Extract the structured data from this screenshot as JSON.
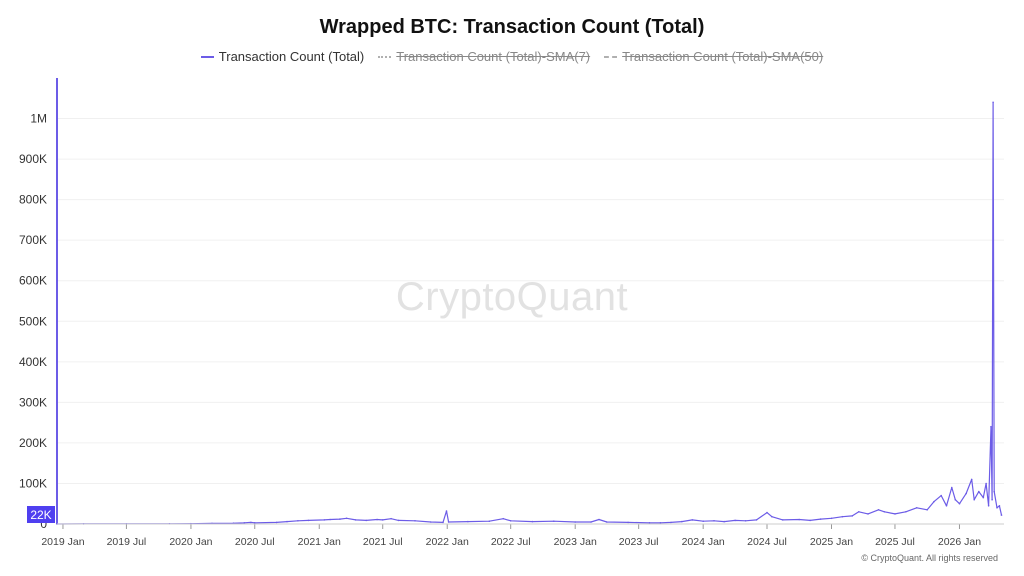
{
  "title": "Wrapped BTC: Transaction Count (Total)",
  "legend": [
    {
      "label": "Transaction Count (Total)",
      "color": "#6c5ce7",
      "hidden": false,
      "style": "solid"
    },
    {
      "label": "Transaction Count (Total)-SMA(7)",
      "color": "#b0b0b0",
      "hidden": true,
      "style": "dotted"
    },
    {
      "label": "Transaction Count (Total)-SMA(50)",
      "color": "#b0b0b0",
      "hidden": true,
      "style": "dashed"
    }
  ],
  "watermark": "CryptoQuant",
  "credit": "© CryptoQuant. All rights reserved",
  "current_value_label": "22K",
  "colors": {
    "series": "#6c5ce7",
    "label_bg": "#4f3ff0",
    "grid": "#f0f0f0"
  },
  "chart_data": {
    "type": "line",
    "title": "Wrapped BTC: Transaction Count (Total)",
    "xlabel": "",
    "ylabel": "",
    "ylim": [
      0,
      1100000
    ],
    "xlim": [
      "2018-12-15",
      "2026-05-08"
    ],
    "grid": true,
    "legend_position": "top-center",
    "y_ticks": [
      {
        "value": 0,
        "label": "0"
      },
      {
        "value": 100000,
        "label": "100K"
      },
      {
        "value": 200000,
        "label": "200K"
      },
      {
        "value": 300000,
        "label": "300K"
      },
      {
        "value": 400000,
        "label": "400K"
      },
      {
        "value": 500000,
        "label": "500K"
      },
      {
        "value": 600000,
        "label": "600K"
      },
      {
        "value": 700000,
        "label": "700K"
      },
      {
        "value": 800000,
        "label": "800K"
      },
      {
        "value": 900000,
        "label": "900K"
      },
      {
        "value": 1000000,
        "label": "1M"
      }
    ],
    "x_ticks": [
      {
        "date": "2019-01-01",
        "label": "2019 Jan"
      },
      {
        "date": "2019-07-01",
        "label": "2019 Jul"
      },
      {
        "date": "2020-01-01",
        "label": "2020 Jan"
      },
      {
        "date": "2020-07-01",
        "label": "2020 Jul"
      },
      {
        "date": "2021-01-01",
        "label": "2021 Jan"
      },
      {
        "date": "2021-07-01",
        "label": "2021 Jul"
      },
      {
        "date": "2022-01-01",
        "label": "2022 Jan"
      },
      {
        "date": "2022-07-01",
        "label": "2022 Jul"
      },
      {
        "date": "2023-01-01",
        "label": "2023 Jan"
      },
      {
        "date": "2023-07-01",
        "label": "2023 Jul"
      },
      {
        "date": "2024-01-01",
        "label": "2024 Jan"
      },
      {
        "date": "2024-07-01",
        "label": "2024 Jul"
      },
      {
        "date": "2025-01-01",
        "label": "2025 Jan"
      },
      {
        "date": "2025-07-01",
        "label": "2025 Jul"
      },
      {
        "date": "2026-01-01",
        "label": "2026 Jan"
      }
    ],
    "series": [
      {
        "name": "Transaction Count (Total)",
        "points": [
          [
            "2018-12-15",
            0
          ],
          [
            "2019-03-01",
            200
          ],
          [
            "2019-07-01",
            300
          ],
          [
            "2019-11-01",
            500
          ],
          [
            "2020-01-01",
            800
          ],
          [
            "2020-03-01",
            1500
          ],
          [
            "2020-05-01",
            2000
          ],
          [
            "2020-06-01",
            3000
          ],
          [
            "2020-06-20",
            4000
          ],
          [
            "2020-07-01",
            3000
          ],
          [
            "2020-09-01",
            4000
          ],
          [
            "2020-10-01",
            6000
          ],
          [
            "2020-11-01",
            8000
          ],
          [
            "2020-12-01",
            9000
          ],
          [
            "2021-01-15",
            10000
          ],
          [
            "2021-02-01",
            11000
          ],
          [
            "2021-03-01",
            12000
          ],
          [
            "2021-03-20",
            14000
          ],
          [
            "2021-04-15",
            10000
          ],
          [
            "2021-05-15",
            9000
          ],
          [
            "2021-06-15",
            11000
          ],
          [
            "2021-07-01",
            10000
          ],
          [
            "2021-07-25",
            13000
          ],
          [
            "2021-08-15",
            9000
          ],
          [
            "2021-10-01",
            8000
          ],
          [
            "2021-11-15",
            5000
          ],
          [
            "2021-12-20",
            4000
          ],
          [
            "2021-12-30",
            32000
          ],
          [
            "2022-01-05",
            5000
          ],
          [
            "2022-03-01",
            6000
          ],
          [
            "2022-05-01",
            7000
          ],
          [
            "2022-06-10",
            13000
          ],
          [
            "2022-07-01",
            8000
          ],
          [
            "2022-09-01",
            6000
          ],
          [
            "2022-11-01",
            7000
          ],
          [
            "2023-01-01",
            5000
          ],
          [
            "2023-02-15",
            5000
          ],
          [
            "2023-03-10",
            11000
          ],
          [
            "2023-04-01",
            5000
          ],
          [
            "2023-06-01",
            4000
          ],
          [
            "2023-08-01",
            3000
          ],
          [
            "2023-09-01",
            3000
          ],
          [
            "2023-10-01",
            4000
          ],
          [
            "2023-11-01",
            6000
          ],
          [
            "2023-12-01",
            10000
          ],
          [
            "2024-01-01",
            7000
          ],
          [
            "2024-02-01",
            8000
          ],
          [
            "2024-03-01",
            6000
          ],
          [
            "2024-04-01",
            9000
          ],
          [
            "2024-05-01",
            8000
          ],
          [
            "2024-06-01",
            10000
          ],
          [
            "2024-07-01",
            28000
          ],
          [
            "2024-07-15",
            18000
          ],
          [
            "2024-08-15",
            10000
          ],
          [
            "2024-10-01",
            11000
          ],
          [
            "2024-11-01",
            9000
          ],
          [
            "2024-12-01",
            12000
          ],
          [
            "2025-01-01",
            14000
          ],
          [
            "2025-02-01",
            18000
          ],
          [
            "2025-03-01",
            20000
          ],
          [
            "2025-03-20",
            30000
          ],
          [
            "2025-04-15",
            25000
          ],
          [
            "2025-05-15",
            35000
          ],
          [
            "2025-06-01",
            30000
          ],
          [
            "2025-07-01",
            25000
          ],
          [
            "2025-08-01",
            30000
          ],
          [
            "2025-09-01",
            40000
          ],
          [
            "2025-10-01",
            35000
          ],
          [
            "2025-10-20",
            55000
          ],
          [
            "2025-11-10",
            70000
          ],
          [
            "2025-11-25",
            45000
          ],
          [
            "2025-12-10",
            90000
          ],
          [
            "2025-12-20",
            60000
          ],
          [
            "2026-01-01",
            50000
          ],
          [
            "2026-01-20",
            75000
          ],
          [
            "2026-02-05",
            110000
          ],
          [
            "2026-02-12",
            60000
          ],
          [
            "2026-02-25",
            80000
          ],
          [
            "2026-03-10",
            65000
          ],
          [
            "2026-03-18",
            100000
          ],
          [
            "2026-03-25",
            45000
          ],
          [
            "2026-04-01",
            240000
          ],
          [
            "2026-04-04",
            60000
          ],
          [
            "2026-04-07",
            1040000
          ],
          [
            "2026-04-10",
            80000
          ],
          [
            "2026-04-18",
            40000
          ],
          [
            "2026-04-25",
            45000
          ],
          [
            "2026-05-01",
            22000
          ]
        ]
      }
    ]
  }
}
